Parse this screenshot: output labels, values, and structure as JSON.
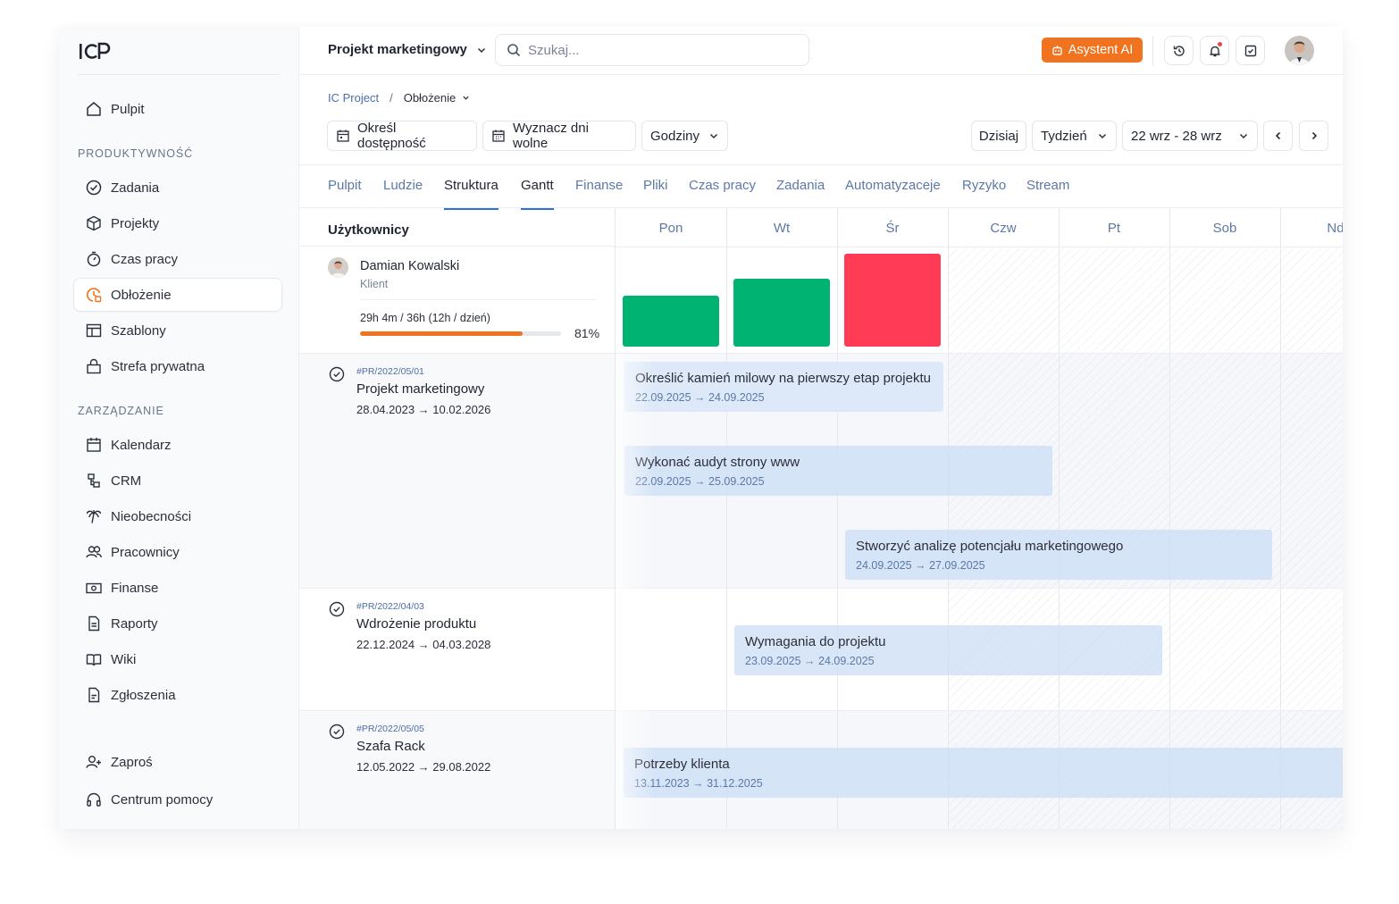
{
  "sidebar": {
    "logo": "ICP",
    "items_top": [
      {
        "label": "Pulpit",
        "icon": "home-icon"
      }
    ],
    "sections": [
      {
        "header": "PRODUKTYWNOŚĆ",
        "items": [
          {
            "label": "Zadania",
            "icon": "check-circle-icon"
          },
          {
            "label": "Projekty",
            "icon": "cube-icon"
          },
          {
            "label": "Czas pracy",
            "icon": "stopwatch-icon"
          },
          {
            "label": "Obłożenie",
            "icon": "workload-icon",
            "active": true
          },
          {
            "label": "Szablony",
            "icon": "template-icon"
          },
          {
            "label": "Strefa prywatna",
            "icon": "lock-icon"
          }
        ]
      },
      {
        "header": "ZARZĄDZANIE",
        "items": [
          {
            "label": "Kalendarz",
            "icon": "calendar-icon"
          },
          {
            "label": "CRM",
            "icon": "crm-icon"
          },
          {
            "label": "Nieobecności",
            "icon": "palm-tree-icon"
          },
          {
            "label": "Pracownicy",
            "icon": "users-icon"
          },
          {
            "label": "Finanse",
            "icon": "banknote-icon"
          },
          {
            "label": "Raporty",
            "icon": "reports-icon"
          },
          {
            "label": "Wiki",
            "icon": "book-icon"
          },
          {
            "label": "Zgłoszenia",
            "icon": "ticket-icon"
          }
        ]
      }
    ],
    "bottom": [
      {
        "label": "Zaproś",
        "icon": "user-plus-icon"
      },
      {
        "label": "Centrum pomocy",
        "icon": "headset-icon"
      }
    ]
  },
  "header": {
    "project": "Projekt marketingowy",
    "search_placeholder": "Szukaj...",
    "ai_label": "Asystent AI"
  },
  "breadcrumb": {
    "root": "IC Project",
    "sep": "/",
    "current": "Obłożenie"
  },
  "toolbar": {
    "availability": "Określ dostępność",
    "days_off": "Wyznacz dni wolne",
    "unit": "Godziny",
    "today": "Dzisiaj",
    "view": "Tydzień",
    "range": "22 wrz - 28 wrz"
  },
  "tabs": [
    "Pulpit",
    "Ludzie",
    "Struktura",
    "Gantt",
    "Finanse",
    "Pliki",
    "Czas pracy",
    "Zadania",
    "Automatyzaceje",
    "Ryzyko",
    "Stream"
  ],
  "active_tabs": [
    "Struktura",
    "Gantt"
  ],
  "gantt": {
    "users_header": "Użytkownicy",
    "days": [
      "Pon",
      "Wt",
      "Śr",
      "Czw",
      "Pt",
      "Sob",
      "Nd"
    ],
    "user": {
      "name": "Damian Kowalski",
      "role": "Klient",
      "hours": "29h 4m / 36h (12h / dzień)",
      "percent_label": "81%",
      "percent": 81,
      "daily_load": [
        {
          "day": "Pon",
          "level": 0.55,
          "color": "#00b373"
        },
        {
          "day": "Wt",
          "level": 0.73,
          "color": "#00b373"
        },
        {
          "day": "Śr",
          "level": 1.0,
          "color": "#ff3b55"
        }
      ]
    },
    "projects": [
      {
        "code": "#PR/2022/05/01",
        "name": "Projekt marketingowy",
        "dates": "28.04.2023 → 10.02.2026",
        "tasks": [
          {
            "title": "Określić kamień milowy na pierwszy etap projektu",
            "dates": "22.09.2025 → 24.09.2025"
          },
          {
            "title": "Wykonać audyt strony www",
            "dates": "22.09.2025 → 25.09.2025"
          },
          {
            "title": "Stworzyć analizę potencjału marketingowego",
            "dates": "24.09.2025 → 27.09.2025"
          }
        ]
      },
      {
        "code": "#PR/2022/04/03",
        "name": "Wdrożenie produktu",
        "dates": "22.12.2024 → 04.03.2028",
        "tasks": [
          {
            "title": "Wymagania do projektu",
            "dates": "23.09.2025 → 24.09.2025"
          }
        ]
      },
      {
        "code": "#PR/2022/05/05",
        "name": "Szafa Rack",
        "dates": "12.05.2022 → 29.08.2022",
        "tasks": [
          {
            "title": "Potrzeby klienta",
            "dates": "13.11.2023 → 31.12.2025"
          }
        ]
      }
    ]
  },
  "colors": {
    "accent": "#f0731f",
    "link": "#5c79a6",
    "tab_underline": "#2f73da",
    "task_bg": "#dde9f8",
    "active_task_bg": "#d3e3f7"
  }
}
